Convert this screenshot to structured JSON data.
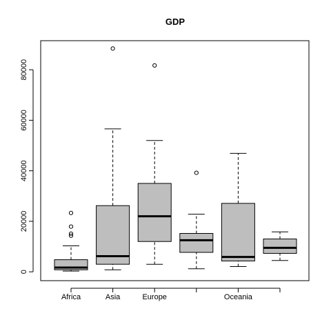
{
  "chart_data": {
    "type": "box",
    "title": "GDP",
    "xlabel": "",
    "ylabel": "",
    "ylim": [
      -3500,
      91500
    ],
    "y_ticks": [
      0,
      20000,
      40000,
      60000,
      80000
    ],
    "grid": false,
    "categories": [
      "Africa",
      "Asia",
      "Europe",
      "",
      "Oceania",
      ""
    ],
    "boxes": [
      {
        "category": "Africa",
        "min": 300,
        "q1": 800,
        "median": 1700,
        "q3": 4800,
        "max": 10300,
        "outliers": [
          14300,
          15100,
          17900,
          23300
        ]
      },
      {
        "category": "Asia",
        "min": 800,
        "q1": 3000,
        "median": 6200,
        "q3": 26200,
        "max": 56600,
        "outliers": [
          88400
        ]
      },
      {
        "category": "Europe",
        "min": 3000,
        "q1": 12000,
        "median": 22000,
        "q3": 35000,
        "max": 52000,
        "outliers": [
          81700
        ]
      },
      {
        "category": "",
        "min": 1200,
        "q1": 7700,
        "median": 12500,
        "q3": 15200,
        "max": 22800,
        "outliers": [
          39200
        ]
      },
      {
        "category": "Oceania",
        "min": 2100,
        "q1": 4300,
        "median": 5900,
        "q3": 27100,
        "max": 46900,
        "outliers": []
      },
      {
        "category": "",
        "min": 4500,
        "q1": 7300,
        "median": 9500,
        "q3": 13000,
        "max": 15800,
        "outliers": []
      }
    ]
  }
}
